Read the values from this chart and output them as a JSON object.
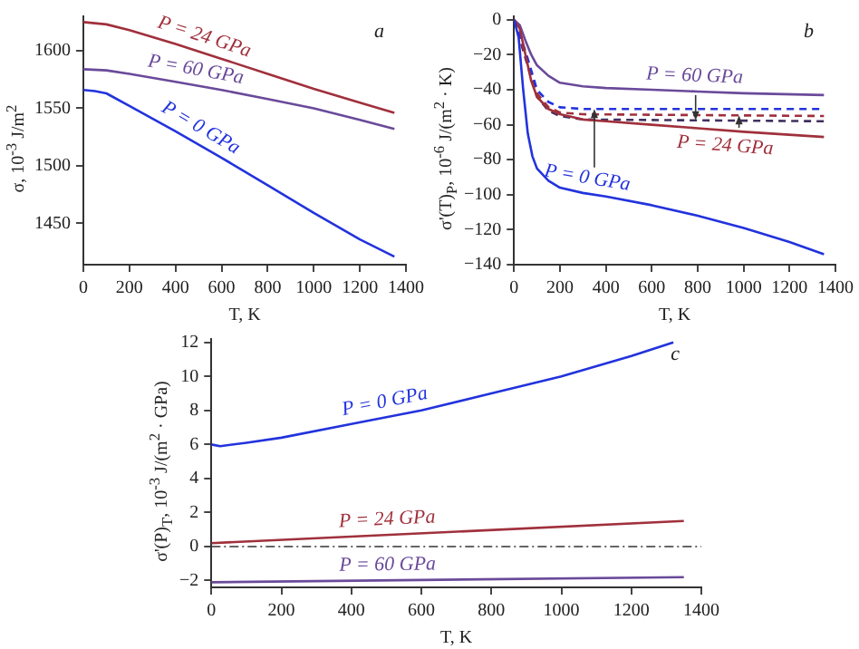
{
  "chart_data": [
    {
      "type": "line",
      "title": "a",
      "xlabel": "T, K",
      "ylabel": "σ, 10$^{-3}$ J/m$^{2}$",
      "xlim": [
        0,
        1400
      ],
      "xticks": [
        0,
        200,
        400,
        600,
        800,
        1000,
        1200,
        1400
      ],
      "ylim": [
        1414,
        1630
      ],
      "yticks": [
        1450,
        1500,
        1550,
        1600
      ],
      "grid": false,
      "legend": false,
      "series": [
        {
          "name": "P = 0 GPa",
          "color": "#2233dd",
          "x": [
            0,
            50,
            100,
            200,
            400,
            600,
            800,
            1000,
            1200,
            1350
          ],
          "values": [
            1566,
            1565,
            1563,
            1552,
            1530,
            1507,
            1483,
            1459,
            1436,
            1421
          ]
        },
        {
          "name": "P = 24 GPa",
          "color": "#a0303c",
          "x": [
            0,
            100,
            200,
            400,
            600,
            800,
            1000,
            1200,
            1350
          ],
          "values": [
            1625,
            1623,
            1618,
            1606,
            1593,
            1580,
            1567,
            1555,
            1546
          ]
        },
        {
          "name": "P = 60 GPa",
          "color": "#6a4a9a",
          "x": [
            0,
            100,
            200,
            400,
            600,
            800,
            1000,
            1200,
            1350
          ],
          "values": [
            1584,
            1583,
            1580,
            1573,
            1566,
            1558,
            1550,
            1540,
            1532
          ]
        }
      ]
    },
    {
      "type": "line",
      "title": "b",
      "xlabel": "T, K",
      "ylabel": "σ'(T)$_{P}$, 10$^{-6}$ J/(m$^{2}$ · K)",
      "xlim": [
        0,
        1400
      ],
      "xticks": [
        0,
        200,
        400,
        600,
        800,
        1000,
        1200,
        1400
      ],
      "ylim": [
        -140,
        2
      ],
      "yticks": [
        -140,
        -120,
        -100,
        -80,
        -60,
        -40,
        -20,
        0
      ],
      "grid": false,
      "legend": false,
      "series": [
        {
          "name": "P = 0 GPa",
          "color": "#2233dd",
          "x": [
            0,
            20,
            40,
            60,
            80,
            100,
            150,
            200,
            300,
            400,
            600,
            800,
            1000,
            1200,
            1350
          ],
          "values": [
            0,
            -10,
            -40,
            -65,
            -78,
            -85,
            -92,
            -96,
            -99,
            -101,
            -106,
            -112,
            -119,
            -127,
            -134
          ]
        },
        {
          "name": "P = 24 GPa",
          "color": "#a0303c",
          "x": [
            0,
            25,
            50,
            75,
            100,
            150,
            200,
            300,
            400,
            600,
            800,
            1000,
            1350
          ],
          "values": [
            0,
            -5,
            -20,
            -35,
            -44,
            -51,
            -54,
            -57,
            -58,
            -60,
            -62,
            -64,
            -67
          ]
        },
        {
          "name": "P = 60 GPa",
          "color": "#6a4a9a",
          "x": [
            0,
            25,
            50,
            75,
            100,
            150,
            200,
            300,
            400,
            600,
            800,
            1000,
            1350
          ],
          "values": [
            0,
            -3,
            -12,
            -20,
            -26,
            -32,
            -36,
            -38,
            -39,
            -40,
            -41,
            -42,
            -43
          ]
        },
        {
          "color": "#2233dd",
          "line_style": "dashed",
          "x": [
            0,
            50,
            100,
            150,
            200,
            300,
            1350
          ],
          "values": [
            0,
            -18,
            -40,
            -47,
            -50,
            -51,
            -51
          ]
        },
        {
          "color": "#a0303c",
          "line_style": "dashed",
          "x": [
            0,
            50,
            100,
            150,
            200,
            300,
            1350
          ],
          "values": [
            0,
            -20,
            -42,
            -50,
            -53,
            -54,
            -55
          ]
        },
        {
          "color": "#403060",
          "line_style": "dashed",
          "x": [
            0,
            50,
            100,
            150,
            200,
            300,
            1350
          ],
          "values": [
            0,
            -22,
            -44,
            -52,
            -55,
            -57,
            -58
          ]
        }
      ]
    },
    {
      "type": "line",
      "title": "c",
      "xlabel": "T, K",
      "ylabel": "σ'(P)$_{T}$, 10$^{-3}$ J/(m$^{2}$ · GPa)",
      "xlim": [
        0,
        1400
      ],
      "xticks": [
        0,
        200,
        400,
        600,
        800,
        1000,
        1200,
        1400
      ],
      "ylim": [
        -2.4,
        12.2
      ],
      "yticks": [
        -2,
        0,
        2,
        4,
        6,
        8,
        10,
        12
      ],
      "grid": false,
      "legend": false,
      "ref_lines": [
        {
          "axis": "y",
          "value": 0,
          "color": "#333333",
          "line_style": "dashed"
        }
      ],
      "series": [
        {
          "name": "P = 0 GPa",
          "color": "#2233dd",
          "x": [
            0,
            25,
            100,
            200,
            400,
            600,
            800,
            1000,
            1200,
            1320
          ],
          "values": [
            6,
            5.9,
            6.1,
            6.4,
            7.2,
            8,
            9,
            10,
            11.2,
            12
          ]
        },
        {
          "name": "P = 24 GPa",
          "color": "#a0303c",
          "x": [
            0,
            1350
          ],
          "values": [
            0.2,
            1.5
          ]
        },
        {
          "name": "P = 60 GPa",
          "color": "#6a4a9a",
          "x": [
            0,
            1350
          ],
          "values": [
            -2.1,
            -1.8
          ]
        }
      ]
    }
  ]
}
